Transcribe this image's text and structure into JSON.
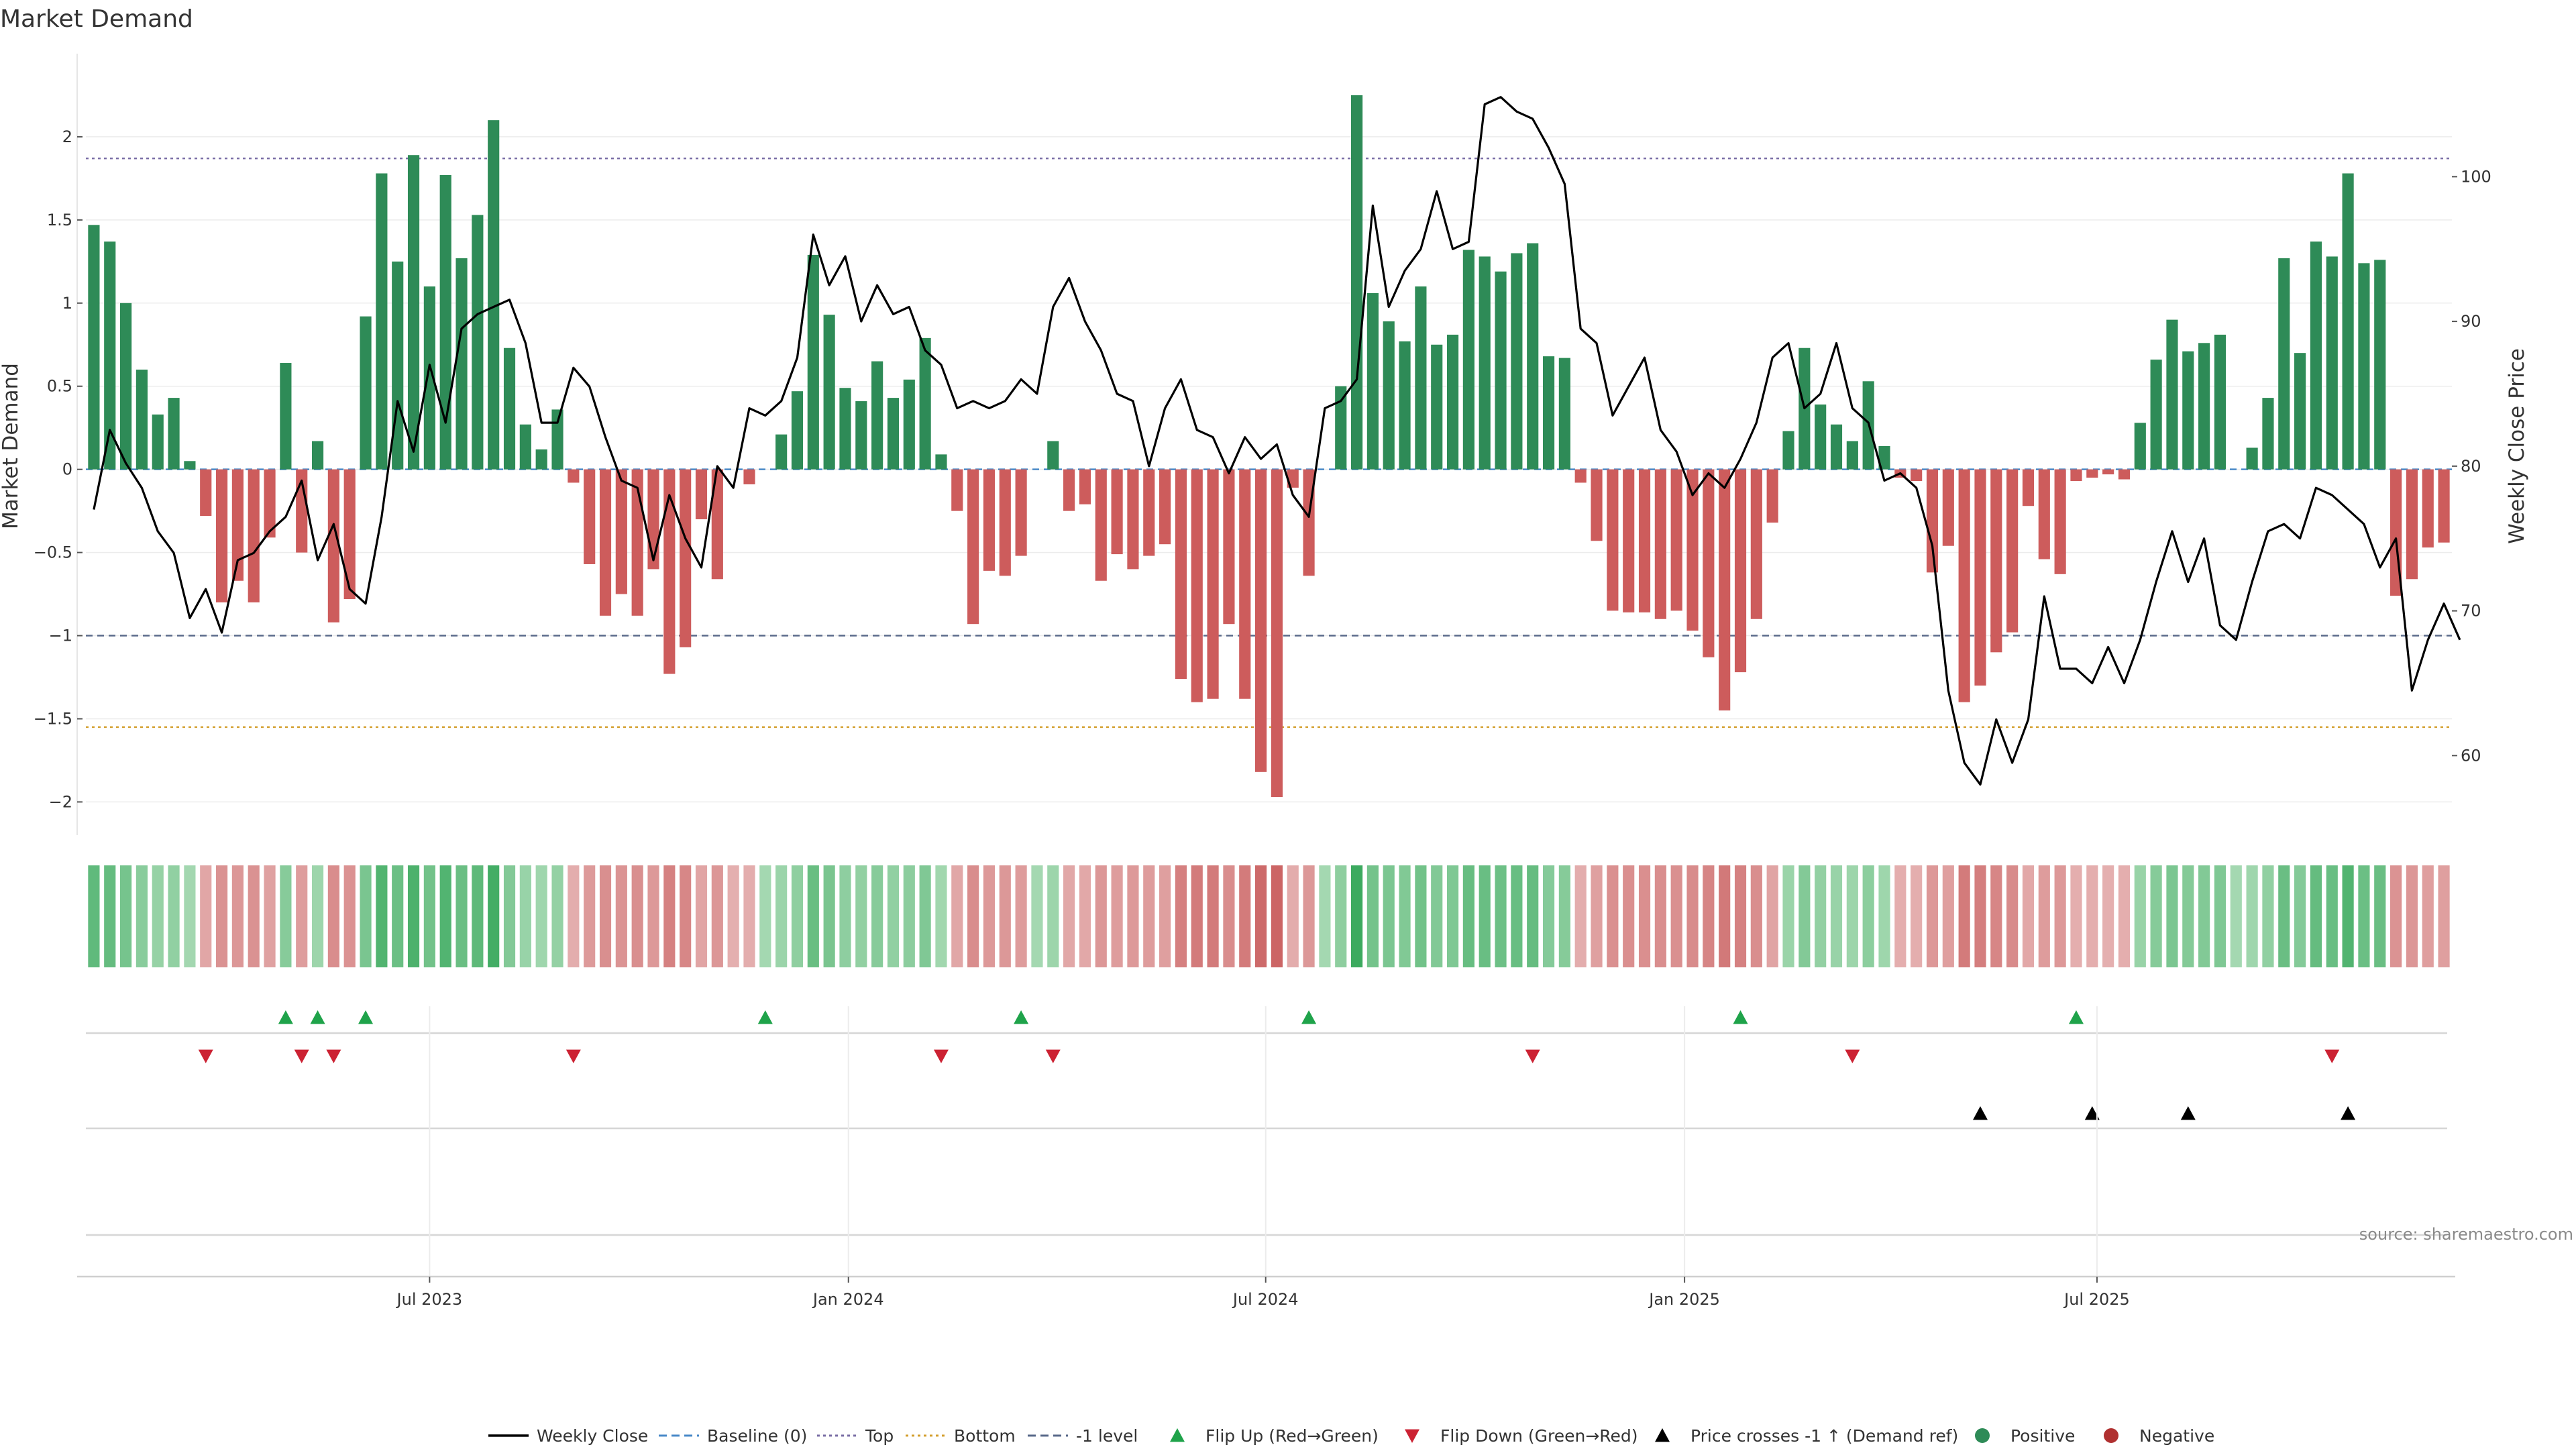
{
  "chart_data": {
    "type": "bar",
    "title": "Market Demand",
    "ylabel_left": "Market Demand",
    "ylabel_right": "Weekly Close Price",
    "source": "source: sharemaestro.com",
    "ylim_left": [
      -2.2,
      2.5
    ],
    "ylim_right": [
      54.5,
      108.5
    ],
    "left_ticks": [
      {
        "value": 2,
        "label": "2"
      },
      {
        "value": 1.5,
        "label": "1.5"
      },
      {
        "value": 1,
        "label": "1"
      },
      {
        "value": 0.5,
        "label": "0.5"
      },
      {
        "value": 0,
        "label": "0"
      },
      {
        "value": -0.5,
        "label": "−0.5"
      },
      {
        "value": -1,
        "label": "−1"
      },
      {
        "value": -1.5,
        "label": "−1.5"
      },
      {
        "value": -2,
        "label": "−2"
      }
    ],
    "right_ticks": [
      {
        "value": 100,
        "label": "100"
      },
      {
        "value": 90,
        "label": "90"
      },
      {
        "value": 80,
        "label": "80"
      },
      {
        "value": 70,
        "label": "70"
      },
      {
        "value": 60,
        "label": "60"
      }
    ],
    "x_ticks": [
      {
        "week": 21.5,
        "label": "Jul 2023"
      },
      {
        "week": 47.7,
        "label": "Jan 2024"
      },
      {
        "week": 73.8,
        "label": "Jul 2024"
      },
      {
        "week": 100,
        "label": "Jan 2025"
      },
      {
        "week": 125.8,
        "label": "Jul 2025"
      }
    ],
    "reference_lines": [
      {
        "name": "Top",
        "value": 1.87,
        "color": "#7b6fa6",
        "style": "dotted"
      },
      {
        "name": "-1 level",
        "value": -1.0,
        "color": "#5a6a8a",
        "style": "dashed"
      },
      {
        "name": "Bottom",
        "value": -1.55,
        "color": "#d4a030",
        "style": "dotted"
      },
      {
        "name": "Baseline (0)",
        "value": 0,
        "color": "#4a8ac8",
        "style": "dashed"
      }
    ],
    "colors": {
      "positive": "#2e8b57",
      "negative": "#cd5c5c",
      "price": "#000000",
      "flip_up": "#1fa34a",
      "flip_down": "#cc2233",
      "cross": "#000000"
    },
    "demand": [
      1.47,
      1.37,
      1.0,
      0.6,
      0.33,
      0.43,
      0.05,
      -0.28,
      -0.8,
      -0.67,
      -0.8,
      -0.41,
      0.64,
      -0.5,
      0.17,
      -0.92,
      -0.78,
      0.92,
      1.78,
      1.25,
      1.89,
      1.1,
      1.77,
      1.27,
      1.53,
      2.1,
      0.73,
      0.27,
      0.12,
      0.36,
      -0.08,
      -0.57,
      -0.88,
      -0.75,
      -0.88,
      -0.6,
      -1.23,
      -1.07,
      -0.3,
      -0.66,
      -0.02,
      -0.09,
      0.02,
      0.21,
      0.47,
      1.29,
      0.93,
      0.49,
      0.41,
      0.65,
      0.43,
      0.54,
      0.79,
      0.09,
      -0.25,
      -0.93,
      -0.61,
      -0.64,
      -0.52,
      0.02,
      0.17,
      -0.25,
      -0.21,
      -0.67,
      -0.51,
      -0.6,
      -0.52,
      -0.45,
      -1.26,
      -1.4,
      -1.38,
      -0.93,
      -1.38,
      -1.82,
      -1.97,
      -0.11,
      -0.64,
      0.02,
      0.5,
      2.25,
      1.06,
      0.89,
      0.77,
      1.1,
      0.75,
      0.81,
      1.32,
      1.28,
      1.19,
      1.3,
      1.36,
      0.68,
      0.67,
      -0.08,
      -0.43,
      -0.85,
      -0.86,
      -0.86,
      -0.9,
      -0.85,
      -0.97,
      -1.13,
      -1.45,
      -1.22,
      -0.9,
      -0.32,
      0.23,
      0.73,
      0.39,
      0.27,
      0.17,
      0.53,
      0.14,
      -0.05,
      -0.07,
      -0.62,
      -0.46,
      -1.4,
      -1.3,
      -1.1,
      -0.98,
      -0.22,
      -0.54,
      -0.63,
      -0.07,
      -0.05,
      -0.03,
      -0.06,
      0.28,
      0.66,
      0.9,
      0.71,
      0.76,
      0.81,
      0.02,
      0.13,
      0.43,
      1.27,
      0.7,
      1.37,
      1.28,
      1.78,
      1.24,
      1.26,
      -0.76,
      -0.66,
      -0.47,
      -0.44
    ],
    "price": [
      77.0,
      82.5,
      80.2,
      78.5,
      75.5,
      74.0,
      69.5,
      71.5,
      68.5,
      73.5,
      74.0,
      75.5,
      76.5,
      79.0,
      73.5,
      76.0,
      71.5,
      70.5,
      76.5,
      84.5,
      81.0,
      87.0,
      83.0,
      89.5,
      90.5,
      91.0,
      91.5,
      88.5,
      83.0,
      83.0,
      86.8,
      85.5,
      82.0,
      79.0,
      78.5,
      73.5,
      78.0,
      75.0,
      73.0,
      80.0,
      78.5,
      84.0,
      83.5,
      84.5,
      87.5,
      96.0,
      92.5,
      94.5,
      90.0,
      92.5,
      90.5,
      91.0,
      88.0,
      87.0,
      84.0,
      84.5,
      84.0,
      84.5,
      86.0,
      85.0,
      91.0,
      93.0,
      90.0,
      88.0,
      85.0,
      84.5,
      80.0,
      84.0,
      86.0,
      82.5,
      82.0,
      79.5,
      82.0,
      80.5,
      81.5,
      78.0,
      76.5,
      84.0,
      84.5,
      86.0,
      98.0,
      91.0,
      93.5,
      95.0,
      99.0,
      95.0,
      95.5,
      105.0,
      105.5,
      104.5,
      104.0,
      102.0,
      99.5,
      89.5,
      88.5,
      83.5,
      85.5,
      87.5,
      82.5,
      81.0,
      78.0,
      79.5,
      78.5,
      80.5,
      83.0,
      87.5,
      88.5,
      84.0,
      85.0,
      88.5,
      84.0,
      83.0,
      79.0,
      79.5,
      78.5,
      74.5,
      64.5,
      59.5,
      58.0,
      62.5,
      59.5,
      62.5,
      71.0,
      66.0,
      66.0,
      65.0,
      67.5,
      65.0,
      68.0,
      72.0,
      75.5,
      72.0,
      75.0,
      69.0,
      68.0,
      72.0,
      75.5,
      76.0,
      75.0,
      78.5,
      78.0,
      77.0,
      76.0,
      73.0,
      75.0,
      64.5,
      68.0,
      70.5,
      68.0
    ],
    "flip_up_weeks": [
      12,
      14,
      17,
      42,
      58,
      76,
      103,
      124
    ],
    "flip_down_weeks": [
      7,
      13,
      15,
      30,
      53,
      60,
      90,
      110,
      140
    ],
    "cross_weeks": [
      118,
      125,
      131,
      141
    ],
    "legend": [
      {
        "label": "Weekly Close",
        "kind": "line",
        "color": "#000000"
      },
      {
        "label": "Baseline (0)",
        "kind": "dash",
        "color": "#4a8ac8"
      },
      {
        "label": "Top",
        "kind": "dot",
        "color": "#7b6fa6"
      },
      {
        "label": "Bottom",
        "kind": "dot",
        "color": "#d4a030"
      },
      {
        "label": "-1 level",
        "kind": "dash",
        "color": "#5a6a8a"
      },
      {
        "label": "Flip Up (Red→Green)",
        "kind": "tri-up",
        "color": "#1fa34a"
      },
      {
        "label": "Flip Down (Green→Red)",
        "kind": "tri-down",
        "color": "#cc2233"
      },
      {
        "label": "Price crosses -1 ↑ (Demand ref)",
        "kind": "tri-up",
        "color": "#000000"
      },
      {
        "label": "Positive",
        "kind": "circle",
        "color": "#2e8b57"
      },
      {
        "label": "Negative",
        "kind": "circle",
        "color": "#b03030"
      }
    ]
  }
}
